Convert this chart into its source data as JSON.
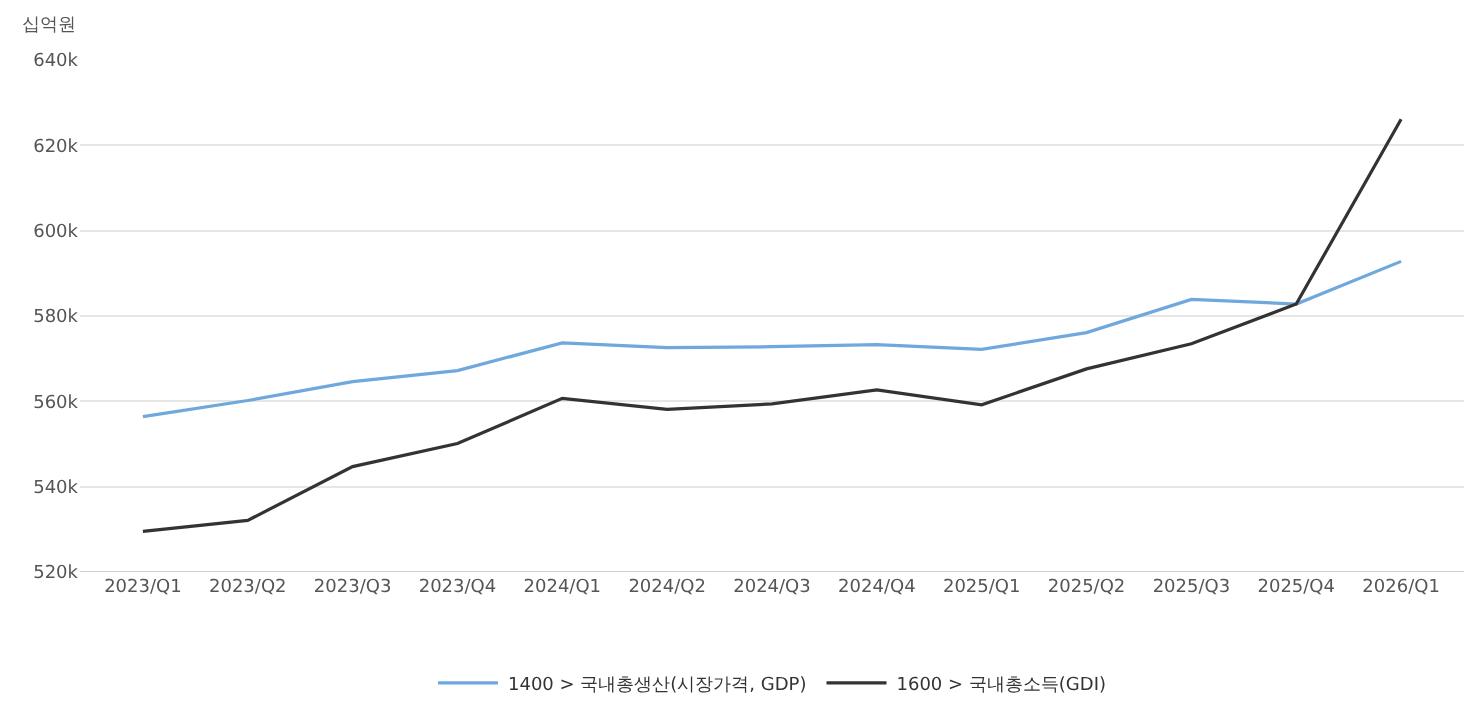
{
  "chart_data": {
    "type": "line",
    "ylabel": "십억원",
    "categories": [
      "2023/Q1",
      "2023/Q2",
      "2023/Q3",
      "2023/Q4",
      "2024/Q1",
      "2024/Q2",
      "2024/Q3",
      "2024/Q4",
      "2025/Q1",
      "2025/Q2",
      "2025/Q3",
      "2025/Q4",
      "2026/Q1"
    ],
    "series": [
      {
        "name": "1400 > 국내총생산(시장가격, GDP)",
        "color": "#6fa8dc",
        "values": [
          556400,
          560200,
          564600,
          567200,
          573700,
          572600,
          572800,
          573300,
          572200,
          576100,
          583900,
          582800,
          592800
        ]
      },
      {
        "name": "1600 > 국내총소득(GDI)",
        "color": "#333333",
        "values": [
          529500,
          532100,
          544700,
          550100,
          560700,
          558100,
          559400,
          562700,
          559200,
          567600,
          573500,
          582800,
          626100
        ]
      }
    ],
    "ylim": [
      520000,
      640000
    ],
    "yticks": [
      {
        "value": 520000,
        "label": "520k"
      },
      {
        "value": 540000,
        "label": "540k"
      },
      {
        "value": 560000,
        "label": "560k"
      },
      {
        "value": 580000,
        "label": "580k"
      },
      {
        "value": 600000,
        "label": "600k"
      },
      {
        "value": 620000,
        "label": "620k"
      },
      {
        "value": 640000,
        "label": "640k"
      }
    ],
    "grid": "y",
    "legend": "bottom",
    "marker": "none",
    "line_style": "solid"
  }
}
